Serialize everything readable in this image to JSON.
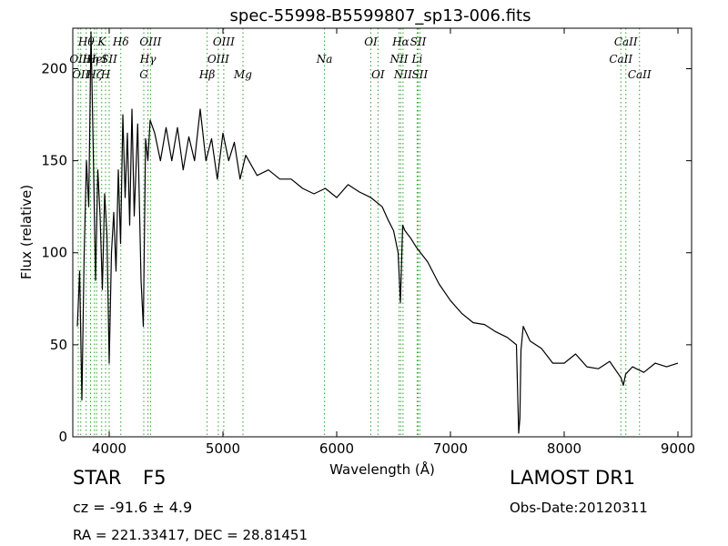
{
  "chart_data": {
    "type": "line",
    "title": "spec-55998-B5599807_sp13-006.fits",
    "xlabel": "Wavelength (Å)",
    "ylabel": "Flux (relative)",
    "xlim": [
      3680,
      9120
    ],
    "ylim": [
      0,
      222
    ],
    "xticks": [
      4000,
      5000,
      6000,
      7000,
      8000,
      9000
    ],
    "yticks": [
      0,
      50,
      100,
      150,
      200
    ],
    "grid": false,
    "legend": "none",
    "line_color": "#000000",
    "marker_color": "#2ca02c",
    "series": [
      {
        "x": [
          3720,
          3740,
          3760,
          3780,
          3800,
          3820,
          3840,
          3860,
          3880,
          3900,
          3920,
          3940,
          3960,
          3980,
          4000,
          4020,
          4040,
          4060,
          4080,
          4100,
          4120,
          4140,
          4160,
          4180,
          4200,
          4220,
          4250,
          4280,
          4300,
          4320,
          4340,
          4360,
          4400,
          4450,
          4500,
          4550,
          4600,
          4650,
          4700,
          4750,
          4800,
          4850,
          4900,
          4950,
          5000,
          5050,
          5100,
          5150,
          5200,
          5300,
          5400,
          5500,
          5600,
          5700,
          5800,
          5900,
          6000,
          6100,
          6200,
          6300,
          6400,
          6450,
          6500,
          6540,
          6560,
          6580,
          6600,
          6650,
          6700,
          6800,
          6900,
          7000,
          7100,
          7200,
          7300,
          7400,
          7500,
          7580,
          7600,
          7610,
          7620,
          7640,
          7700,
          7800,
          7900,
          8000,
          8100,
          8200,
          8300,
          8400,
          8500,
          8520,
          8540,
          8600,
          8700,
          8800,
          8900,
          9000
        ],
        "y": [
          60,
          90,
          20,
          100,
          150,
          125,
          220,
          155,
          85,
          145,
          120,
          80,
          132,
          110,
          40,
          100,
          122,
          90,
          145,
          105,
          175,
          130,
          165,
          115,
          178,
          120,
          170,
          85,
          60,
          162,
          150,
          172,
          165,
          150,
          168,
          150,
          168,
          145,
          163,
          150,
          178,
          150,
          162,
          140,
          165,
          150,
          160,
          140,
          153,
          142,
          145,
          140,
          140,
          135,
          132,
          135,
          130,
          137,
          133,
          130,
          125,
          118,
          112,
          100,
          73,
          115,
          112,
          108,
          103,
          95,
          83,
          74,
          67,
          62,
          61,
          57,
          54,
          50,
          2,
          10,
          47,
          60,
          52,
          48,
          40,
          40,
          45,
          38,
          37,
          41,
          32,
          28,
          34,
          38,
          35,
          40,
          38,
          40
        ]
      }
    ],
    "line_markers": [
      {
        "x": 3728,
        "label": "OII",
        "row": 1
      },
      {
        "x": 3750,
        "label": "OII",
        "row": 2
      },
      {
        "x": 3798,
        "label": "Hθ",
        "row": 0
      },
      {
        "x": 3836,
        "label": "Hη",
        "row": 1
      },
      {
        "x": 3870,
        "label": "Hζ",
        "row": 2
      },
      {
        "x": 3889,
        "label": "HeI",
        "row": 1
      },
      {
        "x": 3934,
        "label": "K",
        "row": 0
      },
      {
        "x": 3968,
        "label": "H",
        "row": 2
      },
      {
        "x": 4000,
        "label": "SII",
        "row": 1
      },
      {
        "x": 4102,
        "label": "Hδ",
        "row": 0
      },
      {
        "x": 4304,
        "label": "G",
        "row": 2
      },
      {
        "x": 4341,
        "label": "Hγ",
        "row": 1
      },
      {
        "x": 4363,
        "label": "OIII",
        "row": 0
      },
      {
        "x": 4861,
        "label": "Hβ",
        "row": 2
      },
      {
        "x": 4959,
        "label": "OIII",
        "row": 1
      },
      {
        "x": 5007,
        "label": "OIII",
        "row": 0
      },
      {
        "x": 5176,
        "label": "Mg",
        "row": 2
      },
      {
        "x": 5893,
        "label": "Na",
        "row": 1
      },
      {
        "x": 6300,
        "label": "OI",
        "row": 0
      },
      {
        "x": 6363,
        "label": "OI",
        "row": 2
      },
      {
        "x": 6548,
        "label": "NII",
        "row": 1
      },
      {
        "x": 6563,
        "label": "Hα",
        "row": 0
      },
      {
        "x": 6583,
        "label": "NII",
        "row": 2
      },
      {
        "x": 6707,
        "label": "Li",
        "row": 1
      },
      {
        "x": 6716,
        "label": "SII",
        "row": 0
      },
      {
        "x": 6731,
        "label": "SII",
        "row": 2
      },
      {
        "x": 8498,
        "label": "CaII",
        "row": 1
      },
      {
        "x": 8542,
        "label": "CaII",
        "row": 0
      },
      {
        "x": 8662,
        "label": "CaII",
        "row": 2
      }
    ]
  },
  "info": {
    "class": "STAR",
    "subclass": "F5",
    "cz": "cz = -91.6 ± 4.9",
    "radec": "RA = 221.33417, DEC = 28.81451",
    "survey": "LAMOST DR1",
    "obs_date": "Obs-Date:20120311"
  }
}
